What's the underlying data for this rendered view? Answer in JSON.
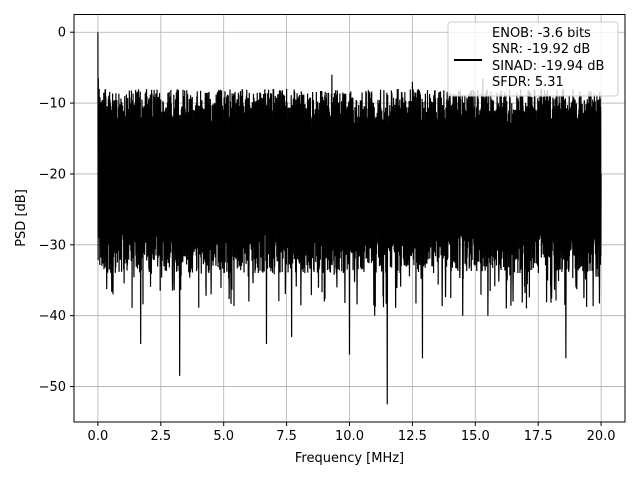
{
  "chart_data": {
    "type": "line",
    "xlabel": "Frequency [MHz]",
    "ylabel": "PSD [dB]",
    "xlim": [
      -0.95,
      20.95
    ],
    "ylim": [
      -55,
      2.5
    ],
    "xticks": [
      0.0,
      2.5,
      5.0,
      7.5,
      10.0,
      12.5,
      15.0,
      17.5,
      20.0
    ],
    "xtick_labels": [
      "0.0",
      "2.5",
      "5.0",
      "7.5",
      "10.0",
      "12.5",
      "15.0",
      "17.5",
      "20.0"
    ],
    "yticks": [
      0,
      -10,
      -20,
      -30,
      -40,
      -50
    ],
    "ytick_labels": [
      "0",
      "−10",
      "−20",
      "−30",
      "−40",
      "−50"
    ],
    "grid": true,
    "legend_position": "top-right",
    "line_color": "#000000",
    "series": [
      {
        "legend_lines": [
          "ENOB: -3.6 bits",
          "SNR: -19.92 dB",
          "SINAD: -19.94 dB",
          "SFDR: 5.31"
        ],
        "x": [
          0.0,
          0.02,
          0.05,
          0.1,
          0.2,
          0.6,
          1.0,
          1.55,
          1.7,
          2.0,
          2.5,
          3.0,
          3.25,
          3.5,
          4.0,
          4.5,
          5.0,
          5.5,
          6.0,
          6.7,
          7.0,
          7.5,
          7.7,
          8.0,
          8.5,
          9.0,
          9.3,
          9.5,
          10.0,
          10.5,
          11.0,
          11.5,
          12.0,
          12.5,
          12.9,
          13.5,
          14.0,
          14.5,
          15.0,
          15.3,
          15.5,
          16.0,
          16.5,
          17.0,
          17.5,
          18.0,
          18.5,
          18.6,
          19.0,
          19.5,
          20.0
        ],
        "y": [
          0.0,
          -6.5,
          -8.0,
          -15.0,
          -21.0,
          -37.0,
          -25.0,
          -8.5,
          -44.0,
          -22.0,
          -9.5,
          -23.0,
          -48.5,
          -18.0,
          -10.5,
          -37.0,
          -20.0,
          -10.0,
          -38.0,
          -44.0,
          -18.0,
          -8.0,
          -43.0,
          -9.0,
          -25.0,
          -38.0,
          -6.0,
          -36.0,
          -45.5,
          -8.5,
          -40.0,
          -52.5,
          -9.5,
          -7.0,
          -46.0,
          -21.0,
          -8.5,
          -40.0,
          -19.0,
          -6.5,
          -40.0,
          -9.5,
          -38.0,
          -10.0,
          -23.0,
          -36.0,
          -8.0,
          -46.0,
          -36.0,
          -10.5,
          -20.0
        ],
        "noise_band_upper_db": -8.0,
        "noise_band_lower_db": -31.0
      }
    ]
  }
}
